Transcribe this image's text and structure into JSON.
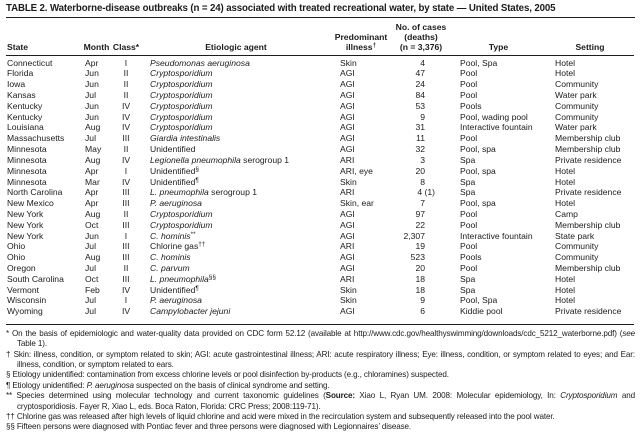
{
  "title": "TABLE 2. Waterborne-disease outbreaks (n = 24) associated with treated recreational water, by state — United States, 2005",
  "columns": {
    "state": "State",
    "month": "Month",
    "class": "Class*",
    "agent": "Etiologic agent",
    "illness_line1": "Predominant",
    "illness_line2": "illness",
    "illness_sup": "†",
    "cases_line1": "No. of cases",
    "cases_line2": "(deaths)",
    "cases_line3": "(n = 3,376)",
    "type": "Type",
    "setting": "Setting"
  },
  "rows": [
    {
      "state": "Connecticut",
      "month": "Apr",
      "cls": "I",
      "ai": "Pseudomonas aeruginosa",
      "ar": "",
      "as": "",
      "ill": "Skin",
      "cases": "4",
      "deaths": "",
      "type": "Pool, Spa",
      "setting": "Hotel"
    },
    {
      "state": "Florida",
      "month": "Jun",
      "cls": "II",
      "ai": "Cryptosporidium",
      "ar": "",
      "as": "",
      "ill": "AGI",
      "cases": "47",
      "deaths": "",
      "type": "Pool",
      "setting": "Hotel"
    },
    {
      "state": "Iowa",
      "month": "Jun",
      "cls": "II",
      "ai": "Cryptosporidium",
      "ar": "",
      "as": "",
      "ill": "AGI",
      "cases": "24",
      "deaths": "",
      "type": "Pool",
      "setting": "Community"
    },
    {
      "state": "Kansas",
      "month": "Jul",
      "cls": "II",
      "ai": "Cryptosporidium",
      "ar": "",
      "as": "",
      "ill": "AGI",
      "cases": "84",
      "deaths": "",
      "type": "Pool",
      "setting": "Water park"
    },
    {
      "state": "Kentucky",
      "month": "Jun",
      "cls": "IV",
      "ai": "Cryptosporidium",
      "ar": "",
      "as": "",
      "ill": "AGI",
      "cases": "53",
      "deaths": "",
      "type": "Pools",
      "setting": "Community"
    },
    {
      "state": "Kentucky",
      "month": "Jun",
      "cls": "IV",
      "ai": "Cryptosporidium",
      "ar": "",
      "as": "",
      "ill": "AGI",
      "cases": "9",
      "deaths": "",
      "type": "Pool, wading pool",
      "setting": "Community"
    },
    {
      "state": "Louisiana",
      "month": "Aug",
      "cls": "IV",
      "ai": "Cryptosporidium",
      "ar": "",
      "as": "",
      "ill": "AGI",
      "cases": "31",
      "deaths": "",
      "type": "Interactive fountain",
      "setting": "Water park"
    },
    {
      "state": "Massachusetts",
      "month": "Jul",
      "cls": "III",
      "ai": "Giardia intestinalis",
      "ar": "",
      "as": "",
      "ill": "AGI",
      "cases": "11",
      "deaths": "",
      "type": "Pool",
      "setting": "Membership club"
    },
    {
      "state": "Minnesota",
      "month": "May",
      "cls": "II",
      "ai": "",
      "ar": "Unidentified",
      "as": "",
      "ill": "AGI",
      "cases": "32",
      "deaths": "",
      "type": "Pool, spa",
      "setting": "Membership club"
    },
    {
      "state": "Minnesota",
      "month": "Aug",
      "cls": "IV",
      "ai": "Legionella pneumophila",
      "ar": " serogroup 1",
      "as": "",
      "ill": "ARI",
      "cases": "3",
      "deaths": "",
      "type": "Spa",
      "setting": "Private residence"
    },
    {
      "state": "Minnesota",
      "month": "Apr",
      "cls": "I",
      "ai": "",
      "ar": "Unidentified",
      "as": "§",
      "ill": "ARI, eye",
      "cases": "20",
      "deaths": "",
      "type": "Pool, spa",
      "setting": "Hotel"
    },
    {
      "state": "Minnesota",
      "month": "Mar",
      "cls": "IV",
      "ai": "",
      "ar": "Unidentified",
      "as": "¶",
      "ill": "Skin",
      "cases": "8",
      "deaths": "",
      "type": "Spa",
      "setting": "Hotel"
    },
    {
      "state": "North Carolina",
      "month": "Apr",
      "cls": "III",
      "ai": "L. pneumophila",
      "ar": " serogroup 1",
      "as": "",
      "ill": "ARI",
      "cases": "4",
      "deaths": "(1)",
      "type": "Spa",
      "setting": "Private residence"
    },
    {
      "state": "New Mexico",
      "month": "Apr",
      "cls": "III",
      "ai": "P. aeruginosa",
      "ar": "",
      "as": "",
      "ill": "Skin, ear",
      "cases": "7",
      "deaths": "",
      "type": "Pool, spa",
      "setting": "Hotel"
    },
    {
      "state": "New York",
      "month": "Aug",
      "cls": "II",
      "ai": "Cryptosporidium",
      "ar": "",
      "as": "",
      "ill": "AGI",
      "cases": "97",
      "deaths": "",
      "type": "Pool",
      "setting": "Camp"
    },
    {
      "state": "New York",
      "month": "Oct",
      "cls": "III",
      "ai": "Cryptosporidium",
      "ar": "",
      "as": "",
      "ill": "AGI",
      "cases": "22",
      "deaths": "",
      "type": "Pool",
      "setting": "Membership club"
    },
    {
      "state": "New York",
      "month": "Jun",
      "cls": "I",
      "ai": "C. hominis",
      "ar": "",
      "as": "**",
      "ill": "AGI",
      "cases": "2,307",
      "deaths": "",
      "type": "Interactive fountain",
      "setting": "State park"
    },
    {
      "state": "Ohio",
      "month": "Jul",
      "cls": "III",
      "ai": "",
      "ar": "Chlorine gas",
      "as": "††",
      "ill": "ARI",
      "cases": "19",
      "deaths": "",
      "type": "Pool",
      "setting": "Community"
    },
    {
      "state": "Ohio",
      "month": "Aug",
      "cls": "III",
      "ai": "C. hominis",
      "ar": "",
      "as": "",
      "ill": "AGI",
      "cases": "523",
      "deaths": "",
      "type": "Pools",
      "setting": "Community"
    },
    {
      "state": "Oregon",
      "month": "Jul",
      "cls": "II",
      "ai": "C. parvum",
      "ar": "",
      "as": "",
      "ill": "AGI",
      "cases": "20",
      "deaths": "",
      "type": "Pool",
      "setting": "Membership club"
    },
    {
      "state": "South Carolina",
      "month": "Oct",
      "cls": "III",
      "ai": "L. pneumophila",
      "ar": "",
      "as": "§§",
      "ill": "ARI",
      "cases": "18",
      "deaths": "",
      "type": "Spa",
      "setting": "Hotel"
    },
    {
      "state": "Vermont",
      "month": "Feb",
      "cls": "IV",
      "ai": "",
      "ar": "Unidentified",
      "as": "¶",
      "ill": "Skin",
      "cases": "18",
      "deaths": "",
      "type": "Spa",
      "setting": "Hotel"
    },
    {
      "state": "Wisconsin",
      "month": "Jul",
      "cls": "I",
      "ai": "P. aeruginosa",
      "ar": "",
      "as": "",
      "ill": "Skin",
      "cases": "9",
      "deaths": "",
      "type": "Pool, Spa",
      "setting": "Hotel"
    },
    {
      "state": "Wyoming",
      "month": "Jul",
      "cls": "IV",
      "ai": "Campylobacter jejuni",
      "ar": "",
      "as": "",
      "ill": "AGI",
      "cases": "6",
      "deaths": "",
      "type": "Kiddie pool",
      "setting": "Private residence"
    }
  ],
  "footnotes": [
    {
      "marker": "*",
      "parts": [
        {
          "t": "On the basis of epidemiologic and water-quality data provided on CDC form 52.12 (available at http://www.cdc.gov/healthyswimming/downloads/cdc_5212_waterborne.pdf) (",
          "s": ""
        },
        {
          "t": "see",
          "s": "i"
        },
        {
          "t": " Table 1).",
          "s": ""
        }
      ]
    },
    {
      "marker": "†",
      "parts": [
        {
          "t": "Skin: illness, condition, or symptom related to skin; AGI: acute gastrointestinal illness; ARI: acute respiratory illness; Eye: illness, condition, or symptom related to eyes; and Ear: illness, condition, or symptom related to ears.",
          "s": ""
        }
      ]
    },
    {
      "marker": "§",
      "parts": [
        {
          "t": "Etiology unidentified: contamination from excess chlorine levels or pool disinfection by-products (e.g., chloramines) suspected.",
          "s": ""
        }
      ]
    },
    {
      "marker": "¶",
      "parts": [
        {
          "t": "Etiology unidentified: ",
          "s": ""
        },
        {
          "t": "P. aeruginosa",
          "s": "i"
        },
        {
          "t": " suspected on the basis of clinical syndrome and setting.",
          "s": ""
        }
      ]
    },
    {
      "marker": "**",
      "parts": [
        {
          "t": "Species determined using molecular technology and current taxonomic guidelines (",
          "s": ""
        },
        {
          "t": "Source:",
          "s": "b"
        },
        {
          "t": " Xiao L, Ryan UM. 2008: Molecular epidemiology, In: ",
          "s": ""
        },
        {
          "t": "Cryptosporidium",
          "s": "i"
        },
        {
          "t": " and cryptosporidiosis. Fayer R, Xiao L, eds. Boca Raton, Florida: CRC Press; 2008:119-71).",
          "s": ""
        }
      ]
    },
    {
      "marker": "††",
      "parts": [
        {
          "t": "Chlorine gas was released after high levels of liquid chlorine and acid were mixed in the recirculation system and subsequently released into the pool water.",
          "s": ""
        }
      ]
    },
    {
      "marker": "§§",
      "parts": [
        {
          "t": "Fifteen persons were diagnosed with Pontiac fever and three persons were diagnosed with Legionnaires’ disease.",
          "s": ""
        }
      ]
    }
  ]
}
